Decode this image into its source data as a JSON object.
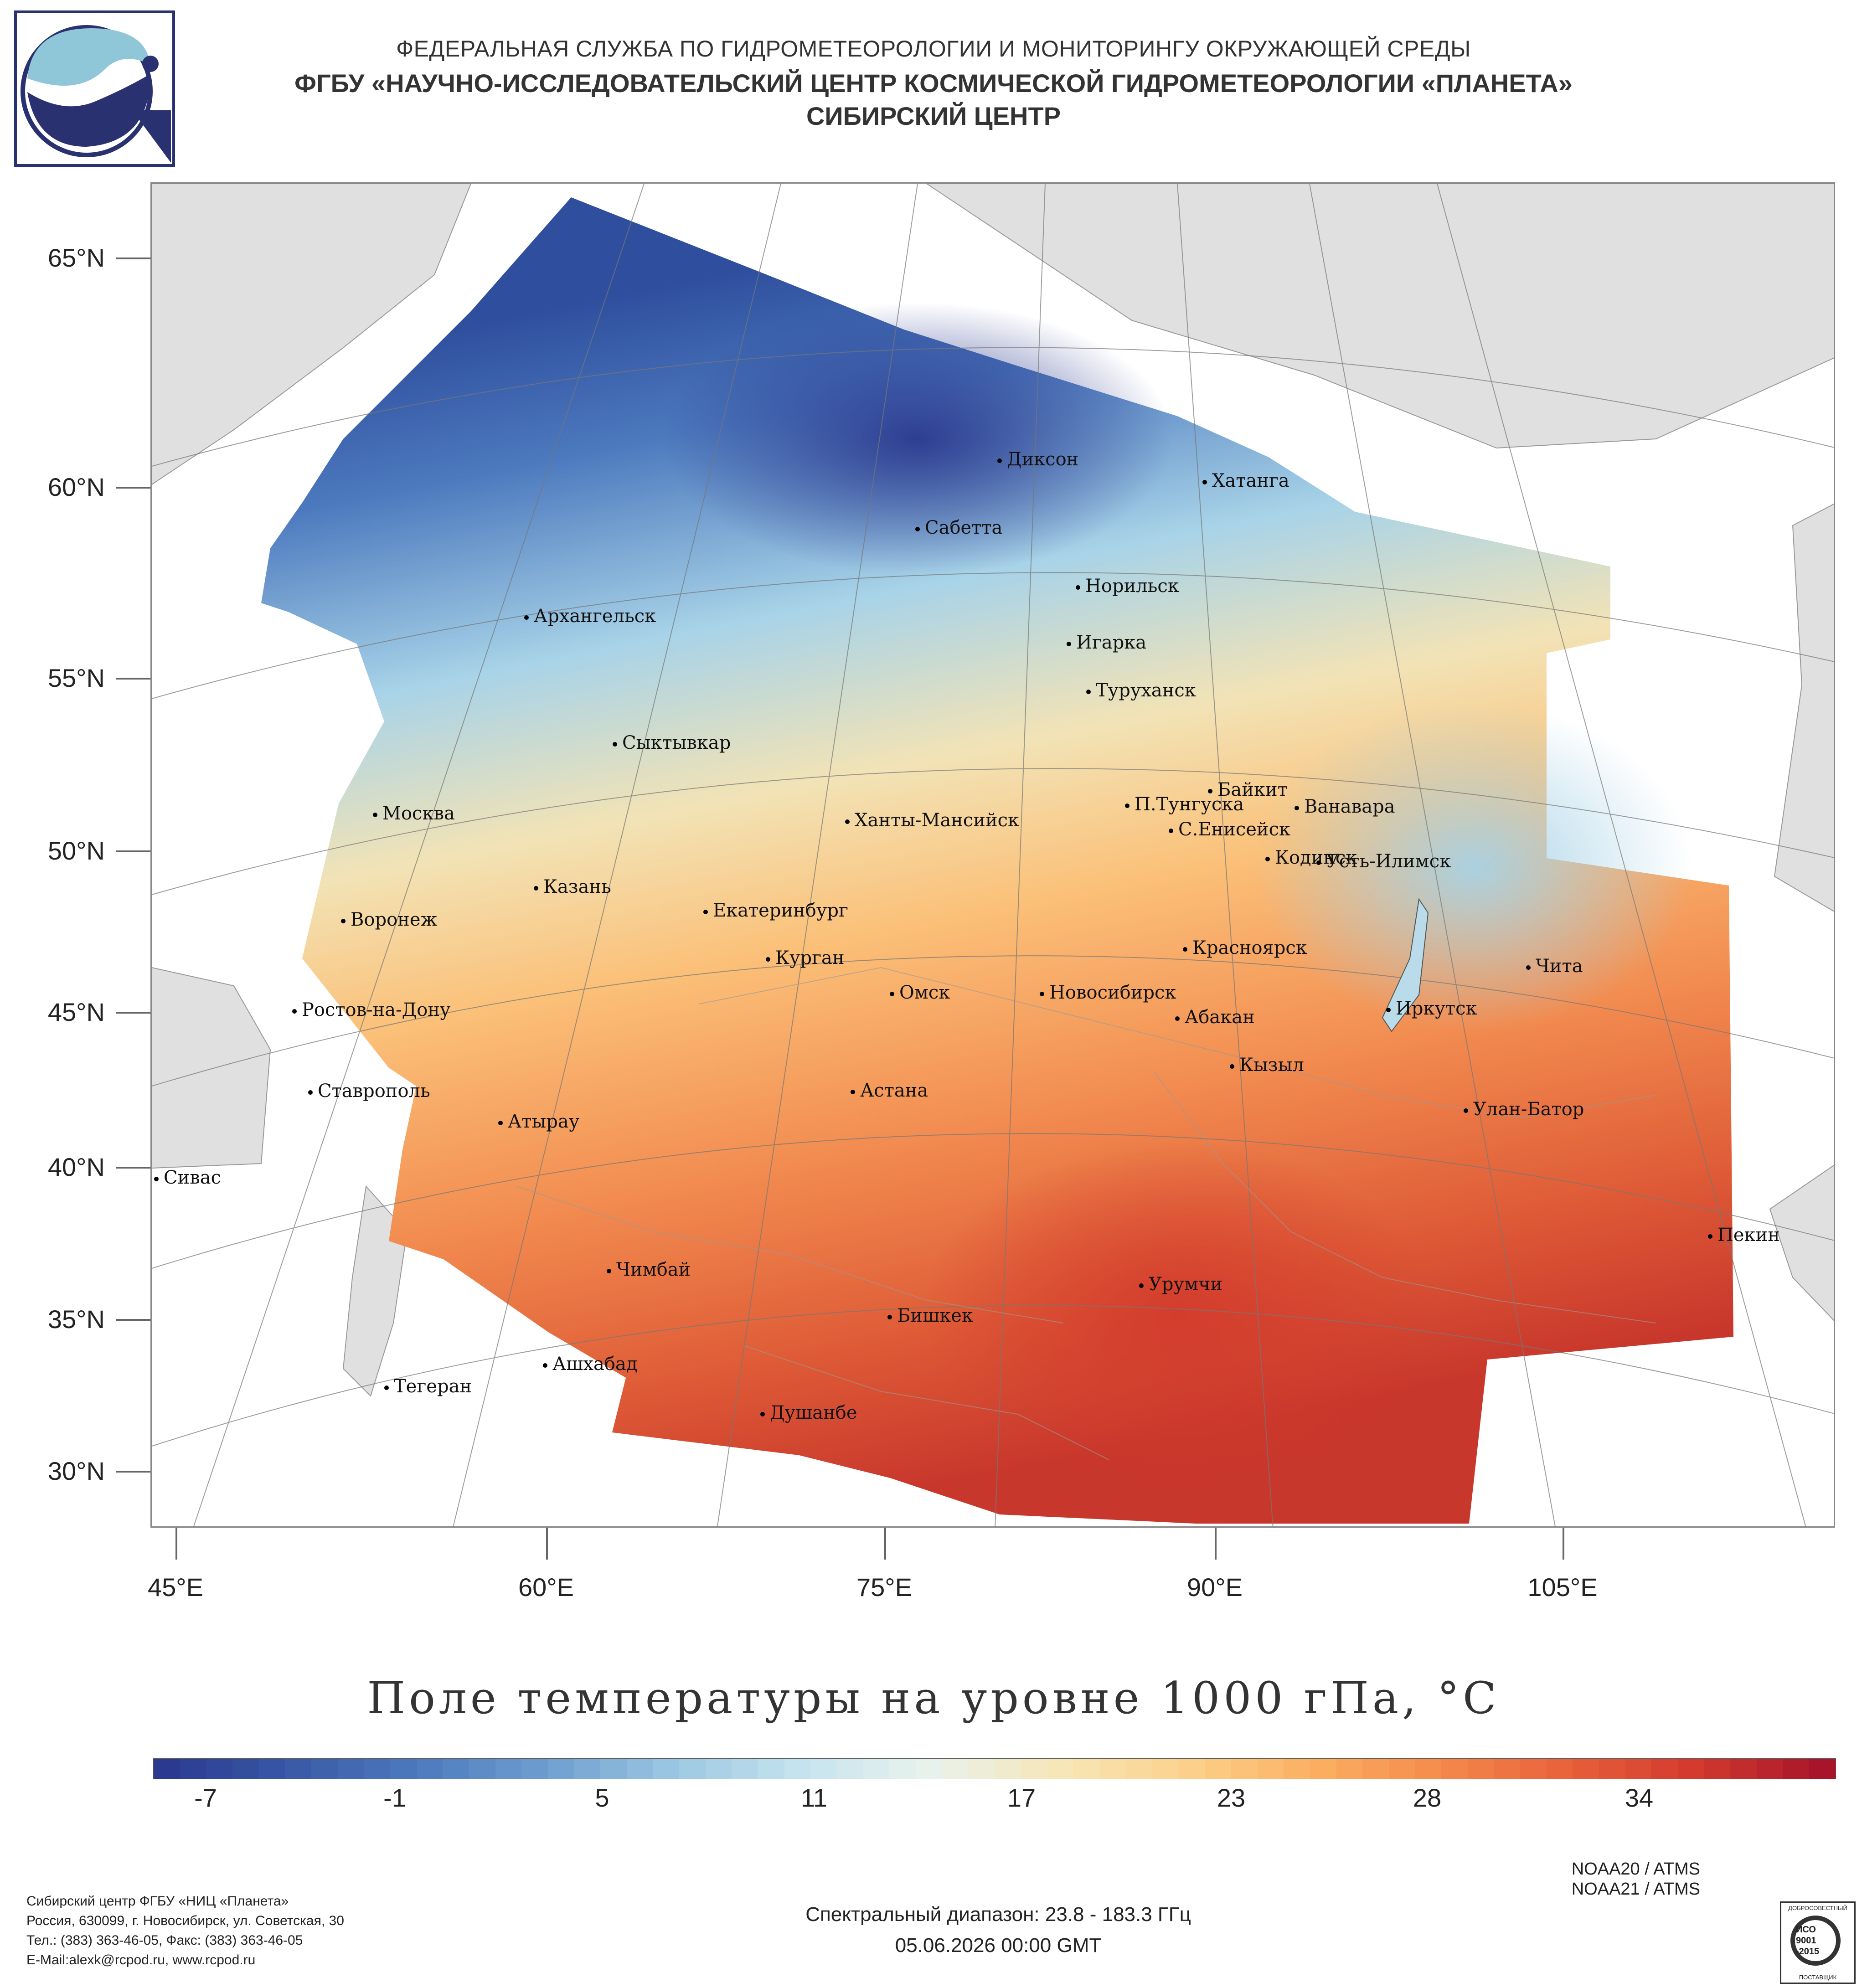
{
  "header": {
    "line1": "ФЕДЕРАЛЬНАЯ СЛУЖБА ПО ГИДРОМЕТЕОРОЛОГИИ И МОНИТОРИНГУ ОКРУЖАЮЩЕЙ СРЕДЫ",
    "line2": "ФГБУ «НАУЧНО-ИССЛЕДОВАТЕЛЬСКИЙ ЦЕНТР КОСМИЧЕСКОЙ ГИДРОМЕТЕОРОЛОГИИ «ПЛАНЕТА»",
    "line3": "СИБИРСКИЙ ЦЕНТР"
  },
  "map": {
    "lat_labels": [
      "65°N",
      "60°N",
      "55°N",
      "50°N",
      "45°N",
      "40°N",
      "35°N",
      "30°N"
    ],
    "lon_labels": [
      "45°E",
      "60°E",
      "75°E",
      "90°E",
      "105°E"
    ],
    "cities": [
      "Диксон",
      "Хатанга",
      "Сабетта",
      "Норильск",
      "Архангельск",
      "Игарка",
      "Туруханск",
      "Сыктывкар",
      "Байкит",
      "Москва",
      "П.Тунгуска",
      "Ванавара",
      "Ханты-Мансийск",
      "С.Енисейск",
      "Кодинск",
      "Усть-Илимск",
      "Казань",
      "Екатеринбург",
      "Воронеж",
      "Курган",
      "Красноярск",
      "Чита",
      "Омск",
      "Новосибирск",
      "Ростов-на-Дону",
      "Иркутск",
      "Абакан",
      "Кызыл",
      "Ставрополь",
      "Астана",
      "Улан-Батор",
      "Атырау",
      "Сивас",
      "Пекин",
      "Чимбай",
      "Урумчи",
      "Бишкек",
      "Ашхабад",
      "Тегеран",
      "Душанбе"
    ]
  },
  "title": "Поле температуры на уровне 1000 гПа, °C",
  "colorbar": {
    "ticks": [
      "-7",
      "-1",
      "5",
      "11",
      "17",
      "23",
      "28",
      "34"
    ],
    "colors": [
      "#2b3a8f",
      "#3a5aa8",
      "#4d7bbf",
      "#6f9fd0",
      "#9cc8e2",
      "#c7e4ef",
      "#e8f2ec",
      "#f7e6b8",
      "#fcd28c",
      "#fbb062",
      "#f58a4c",
      "#e8603a",
      "#d33a2e",
      "#a8142a"
    ]
  },
  "footer": {
    "org_lines": [
      "Сибирский центр ФГБУ «НИЦ «Планета»",
      "Россия, 630099, г. Новосибирск, ул. Советская, 30",
      "Тел.: (383) 363-46-05, Факс: (383) 363-46-05",
      "E-Mail:alexk@rcpod.ru, www.rcpod.ru"
    ],
    "satellites": [
      "NOAA20 / ATMS",
      "NOAA21 / ATMS"
    ],
    "spectral": "Спектральный диапазон: 23.8 - 183.3 ГГц",
    "datetime": "05.06.2026 00:00 GMT",
    "iso_badge": [
      "ДОБРОСОВЕСТНЫЙ",
      "ИСО",
      "9001",
      "-2015",
      "ПОСТАВЩИК"
    ]
  }
}
